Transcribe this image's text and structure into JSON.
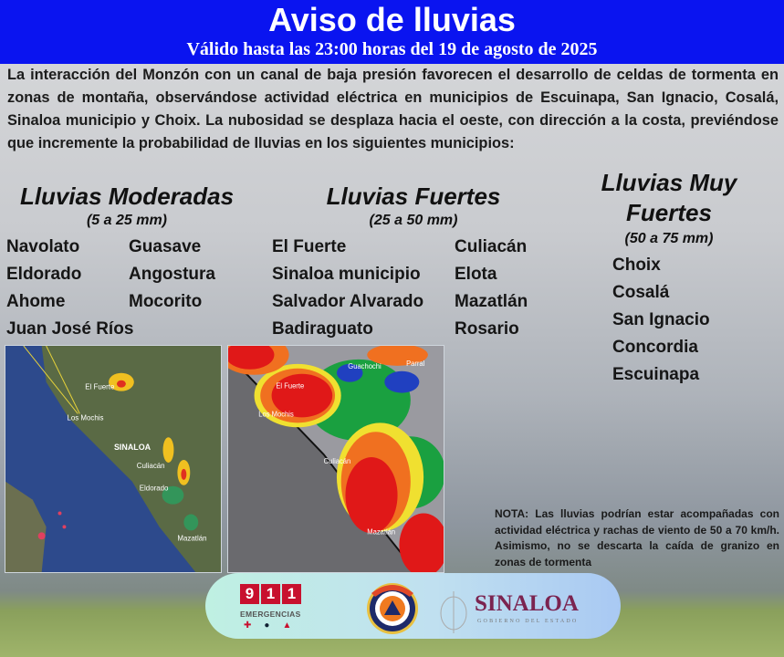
{
  "header": {
    "title": "Aviso de lluvias",
    "subtitle": "Válido hasta las 23:00 horas del 19 de agosto de 2025"
  },
  "intro": "La interacción del Monzón con un canal de baja presión favorecen el desarrollo de celdas de tormenta en zonas de montaña, observándose actividad eléctrica en municipios de Escuinapa, San Ignacio, Cosalá, Sinaloa municipio y Choix. La nubosidad se desplaza hacia el oeste, con dirección a la costa, previéndose que incremente la probabilidad de lluvias en los siguientes municipios:",
  "categories": {
    "moderadas": {
      "title": "Lluvias Moderadas",
      "range": "(5 a 25 mm)",
      "col1": [
        "Navolato",
        "Eldorado",
        "Ahome",
        "Juan José Ríos"
      ],
      "col2": [
        "Guasave",
        "Angostura",
        "Mocorito"
      ]
    },
    "fuertes": {
      "title": "Lluvias Fuertes",
      "range": "(25 a 50 mm)",
      "col1": [
        "El Fuerte",
        "Sinaloa municipio",
        "Salvador Alvarado",
        "Badiraguato"
      ],
      "col2": [
        "Culiacán",
        "Elota",
        "Mazatlán",
        "Rosario"
      ]
    },
    "muy_fuertes": {
      "title_line1": "Lluvias Muy",
      "title_line2": "Fuertes",
      "range": "(50 a 75 mm)",
      "items": [
        "Choix",
        "Cosalá",
        "San Ignacio",
        "Concordia",
        "Escuinapa"
      ]
    }
  },
  "maps": {
    "lightning": {
      "labels": [
        "El Fuerte",
        "Los Mochis",
        "SINALOA",
        "Culiacán",
        "Eldorado",
        "Mazatlán"
      ]
    },
    "satellite": {
      "labels": [
        "Guachochi",
        "Parral",
        "El Fuerte",
        "Los Mochis",
        "Culiacán",
        "Mazatlán"
      ]
    }
  },
  "nota": "NOTA: Las lluvias podrían estar acompañadas con actividad eléctrica y rachas de viento de 50 a 70 km/h. Asimismo, no se descarta la caída de granizo en zonas de tormenta",
  "footer": {
    "n911": [
      "9",
      "1",
      "1"
    ],
    "emergencias": "EMERGENCIAS",
    "sinaloa": "SINALOA",
    "gobierno": "GOBIERNO DEL ESTADO"
  },
  "colors": {
    "header_bg": "#0a14f0",
    "sinaloa_logo": "#7b2450",
    "emergency_red": "#c8102e"
  }
}
